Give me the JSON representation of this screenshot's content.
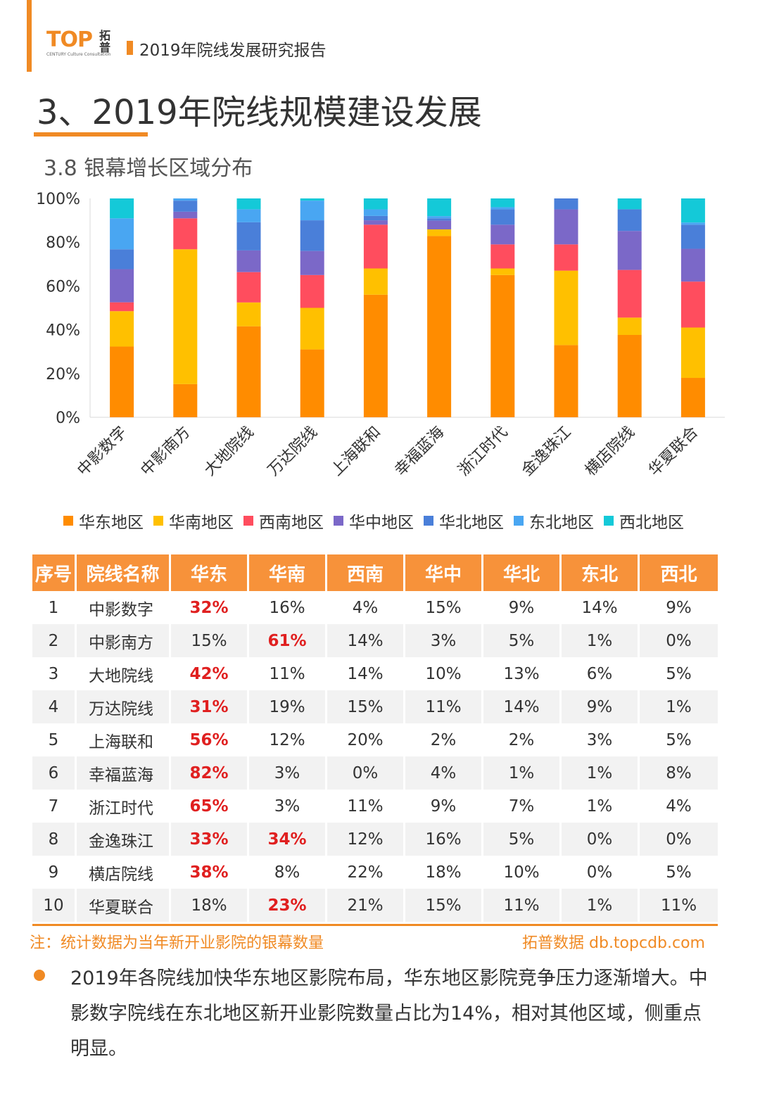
{
  "header": {
    "logo_text": "TOP",
    "logo_sub": "CENTURY Culture Consultation",
    "logo_cn": "拓普",
    "report_title": "2019年院线发展研究报告"
  },
  "section_title": "3、2019年院线规模建设发展",
  "sub_title": "3.8 银幕增长区域分布",
  "colors": {
    "accent": "#f08a24",
    "header_fill": "#f7923a",
    "highlight": "#e02020"
  },
  "chart_data": {
    "type": "bar",
    "stacked": true,
    "percent": true,
    "categories": [
      "中影数字",
      "中影南方",
      "大地院线",
      "万达院线",
      "上海联和",
      "幸福蓝海",
      "浙江时代",
      "金逸珠江",
      "横店院线",
      "华夏联合"
    ],
    "series": [
      {
        "name": "华东地区",
        "color": "#ff8c00",
        "values": [
          32,
          15,
          42,
          31,
          56,
          82,
          65,
          33,
          38,
          18
        ]
      },
      {
        "name": "华南地区",
        "color": "#ffc000",
        "values": [
          16,
          61,
          11,
          19,
          12,
          3,
          3,
          34,
          8,
          23
        ]
      },
      {
        "name": "西南地区",
        "color": "#ff4d5e",
        "values": [
          4,
          14,
          14,
          15,
          20,
          0,
          11,
          12,
          22,
          21
        ]
      },
      {
        "name": "华中地区",
        "color": "#7b68c8",
        "values": [
          15,
          3,
          10,
          11,
          2,
          4,
          9,
          16,
          18,
          15
        ]
      },
      {
        "name": "华北地区",
        "color": "#4a7fd9",
        "values": [
          9,
          5,
          13,
          14,
          2,
          1,
          7,
          5,
          10,
          11
        ]
      },
      {
        "name": "东北地区",
        "color": "#49a6f2",
        "values": [
          14,
          1,
          6,
          9,
          3,
          1,
          1,
          0,
          0,
          1
        ]
      },
      {
        "name": "西北地区",
        "color": "#14c9d8",
        "values": [
          9,
          0,
          5,
          1,
          5,
          8,
          4,
          0,
          5,
          11
        ]
      }
    ],
    "y_ticks": [
      "0%",
      "20%",
      "40%",
      "60%",
      "80%",
      "100%"
    ],
    "ylim": [
      0,
      100
    ],
    "legend_position": "bottom",
    "grid": false
  },
  "table": {
    "headers": [
      "序号",
      "院线名称",
      "华东",
      "华南",
      "西南",
      "华中",
      "华北",
      "东北",
      "西北"
    ],
    "rows": [
      {
        "cells": [
          "1",
          "中影数字",
          "32%",
          "16%",
          "4%",
          "15%",
          "9%",
          "14%",
          "9%"
        ],
        "highlight": [
          2
        ]
      },
      {
        "cells": [
          "2",
          "中影南方",
          "15%",
          "61%",
          "14%",
          "3%",
          "5%",
          "1%",
          "0%"
        ],
        "highlight": [
          3
        ]
      },
      {
        "cells": [
          "3",
          "大地院线",
          "42%",
          "11%",
          "14%",
          "10%",
          "13%",
          "6%",
          "5%"
        ],
        "highlight": [
          2
        ]
      },
      {
        "cells": [
          "4",
          "万达院线",
          "31%",
          "19%",
          "15%",
          "11%",
          "14%",
          "9%",
          "1%"
        ],
        "highlight": [
          2
        ]
      },
      {
        "cells": [
          "5",
          "上海联和",
          "56%",
          "12%",
          "20%",
          "2%",
          "2%",
          "3%",
          "5%"
        ],
        "highlight": [
          2
        ]
      },
      {
        "cells": [
          "6",
          "幸福蓝海",
          "82%",
          "3%",
          "0%",
          "4%",
          "1%",
          "1%",
          "8%"
        ],
        "highlight": [
          2
        ]
      },
      {
        "cells": [
          "7",
          "浙江时代",
          "65%",
          "3%",
          "11%",
          "9%",
          "7%",
          "1%",
          "4%"
        ],
        "highlight": [
          2
        ]
      },
      {
        "cells": [
          "8",
          "金逸珠江",
          "33%",
          "34%",
          "12%",
          "16%",
          "5%",
          "0%",
          "0%"
        ],
        "highlight": [
          2,
          3
        ]
      },
      {
        "cells": [
          "9",
          "横店院线",
          "38%",
          "8%",
          "22%",
          "18%",
          "10%",
          "0%",
          "5%"
        ],
        "highlight": [
          2
        ]
      },
      {
        "cells": [
          "10",
          "华夏联合",
          "18%",
          "23%",
          "21%",
          "15%",
          "11%",
          "1%",
          "11%"
        ],
        "highlight": [
          3
        ]
      }
    ]
  },
  "note": "注：统计数据为当年新开业影院的银幕数量",
  "source": "拓普数据  db.topcdb.com",
  "summary": "2019年各院线加快华东地区影院布局，华东地区影院竞争压力逐渐增大。中影数字院线在东北地区新开业影院数量占比为14%，相对其他区域，侧重点明显。"
}
